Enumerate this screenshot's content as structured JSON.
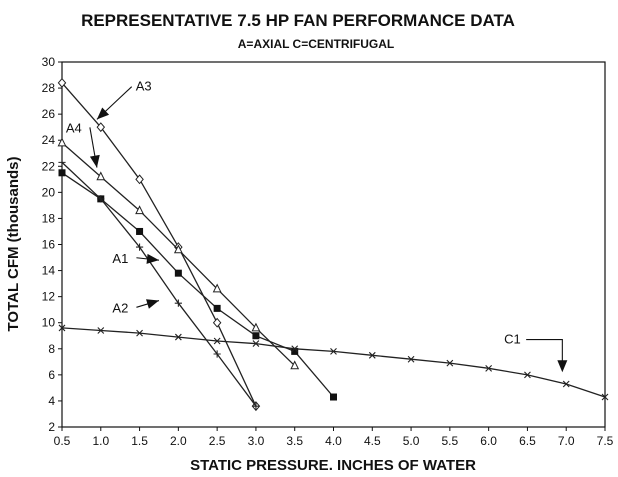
{
  "chart_data": {
    "type": "line",
    "title": "REPRESENTATIVE 7.5 HP FAN PERFORMANCE DATA",
    "subtitle": "A=AXIAL  C=CENTRIFUGAL",
    "xlabel": "STATIC PRESSURE. INCHES OF WATER",
    "ylabel": "TOTAL CFM (thousands)",
    "xlim": [
      0.5,
      7.5
    ],
    "ylim": [
      2,
      30
    ],
    "x_ticks": [
      "0.5",
      "1.0",
      "1.5",
      "2.0",
      "2.5",
      "3.0",
      "3.5",
      "4.0",
      "4.5",
      "5.0",
      "5.5",
      "6.0",
      "6.5",
      "7.0",
      "7.5"
    ],
    "y_ticks": [
      "2",
      "4",
      "6",
      "8",
      "10",
      "12",
      "14",
      "16",
      "18",
      "20",
      "22",
      "24",
      "26",
      "28",
      "30"
    ],
    "grid": false,
    "series": [
      {
        "name": "A3",
        "marker": "diamond",
        "points": [
          [
            0.5,
            28.4
          ],
          [
            1.0,
            25.0
          ],
          [
            1.5,
            21.0
          ],
          [
            2.0,
            15.8
          ],
          [
            2.5,
            10.0
          ],
          [
            3.0,
            3.6
          ]
        ]
      },
      {
        "name": "A4",
        "marker": "triangle",
        "points": [
          [
            0.5,
            23.8
          ],
          [
            1.0,
            21.2
          ],
          [
            1.5,
            18.6
          ],
          [
            2.0,
            15.6
          ],
          [
            2.5,
            12.6
          ],
          [
            3.0,
            9.6
          ],
          [
            3.5,
            6.7
          ]
        ]
      },
      {
        "name": "A1",
        "marker": "square",
        "points": [
          [
            0.5,
            21.5
          ],
          [
            1.0,
            19.5
          ],
          [
            1.5,
            17.0
          ],
          [
            2.0,
            13.8
          ],
          [
            2.5,
            11.1
          ],
          [
            3.0,
            9.0
          ],
          [
            3.5,
            7.8
          ],
          [
            4.0,
            4.3
          ]
        ]
      },
      {
        "name": "A2",
        "marker": "plus",
        "points": [
          [
            0.5,
            22.3
          ],
          [
            1.0,
            19.5
          ],
          [
            1.5,
            15.8
          ],
          [
            2.0,
            11.5
          ],
          [
            2.5,
            7.6
          ],
          [
            3.0,
            3.6
          ]
        ]
      },
      {
        "name": "C1",
        "marker": "x",
        "points": [
          [
            0.5,
            9.6
          ],
          [
            1.0,
            9.4
          ],
          [
            1.5,
            9.2
          ],
          [
            2.0,
            8.9
          ],
          [
            2.5,
            8.6
          ],
          [
            3.0,
            8.4
          ],
          [
            3.5,
            8.0
          ],
          [
            4.0,
            7.8
          ],
          [
            4.5,
            7.5
          ],
          [
            5.0,
            7.2
          ],
          [
            5.5,
            6.9
          ],
          [
            6.0,
            6.5
          ],
          [
            6.5,
            6.0
          ],
          [
            7.0,
            5.3
          ],
          [
            7.5,
            4.3
          ]
        ]
      }
    ],
    "annotations": [
      {
        "label": "A3",
        "text_at": [
          1.45,
          27.8
        ],
        "arrow_to": [
          0.95,
          25.6
        ]
      },
      {
        "label": "A4",
        "text_at": [
          0.55,
          24.6
        ],
        "arrow_to": [
          0.95,
          21.9
        ]
      },
      {
        "label": "A1",
        "text_at": [
          1.15,
          14.6
        ],
        "arrow_to": [
          1.75,
          14.8
        ]
      },
      {
        "label": "A2",
        "text_at": [
          1.15,
          10.8
        ],
        "arrow_to": [
          1.75,
          11.7
        ]
      },
      {
        "label": "C1",
        "text_at": [
          6.2,
          8.4
        ],
        "arrow_to": [
          6.95,
          6.2
        ]
      }
    ]
  }
}
